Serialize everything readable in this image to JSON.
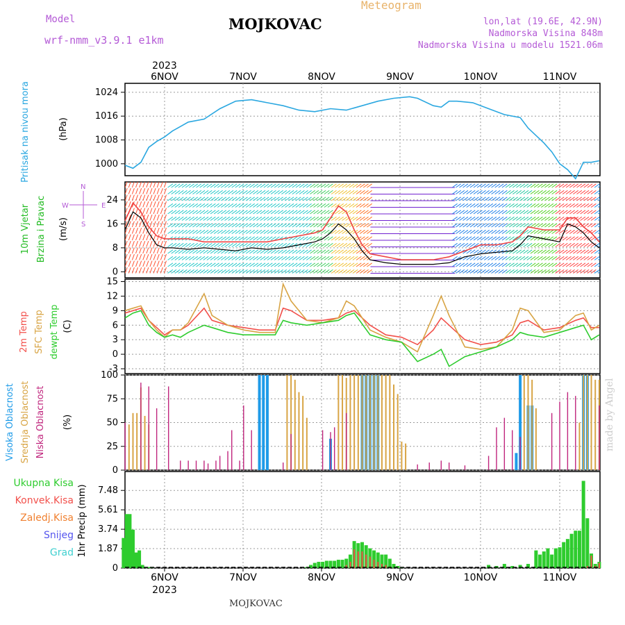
{
  "header": {
    "model_label": "Model",
    "model_name": "wrf-nmm_v3.9.1  e1km",
    "title": "MOJKOVAC",
    "product": "Meteogram",
    "lonlat": "lon,lat (19.6E, 42.9N)",
    "elevation": "Nadmorska Visina 848m",
    "model_elevation": "Nadmorska Visina u modelu 1521.06m",
    "year_top": "2023",
    "year_bottom": "2023",
    "footer_station": "MOJKOVAC",
    "credit": "made by Angel"
  },
  "days": [
    "6NOV",
    "7NOV",
    "8NOV",
    "9NOV",
    "10NOV",
    "11NOV"
  ],
  "colors": {
    "pressure": "#2aa7e0",
    "temp2m": "#f2504b",
    "sfc_temp": "#d8a444",
    "dewpoint": "#2ecc2e",
    "high_cloud": "#1e9be8",
    "mid_cloud": "#d8a444",
    "low_cloud": "#c0257d",
    "precip_total": "#2ecc2e",
    "precip_conv": "#f2504b",
    "precip_frz": "#f08030",
    "snow": "#5555ee",
    "graupel": "#40d0d0",
    "wind_gust": "#ee4444",
    "wind_speed": "#000000"
  },
  "chart_data": [
    {
      "type": "line",
      "panel": "pressure",
      "ylabel_left": "Pritisak na nivou mora",
      "ylabel": "(hPa)",
      "yticks": [
        "1000",
        "1008",
        "1016",
        "1024"
      ],
      "ylim": [
        996,
        1027
      ],
      "x_unit": "days from 6NOV 00UTC",
      "x": [
        -0.5,
        -0.4,
        -0.3,
        -0.2,
        -0.1,
        0,
        0.1,
        0.2,
        0.3,
        0.5,
        0.7,
        0.9,
        1.1,
        1.3,
        1.5,
        1.7,
        1.9,
        2.1,
        2.3,
        2.5,
        2.7,
        2.9,
        3.1,
        3.2,
        3.4,
        3.5,
        3.6,
        3.7,
        3.9,
        4.1,
        4.3,
        4.5,
        4.6,
        4.8,
        4.9,
        5.0,
        5.1,
        5.2,
        5.3,
        5.4,
        5.5
      ],
      "values": [
        999.5,
        998.5,
        1000.5,
        1005.5,
        1007.5,
        1009,
        1011,
        1012.5,
        1014,
        1015,
        1018.5,
        1021,
        1021.5,
        1020.5,
        1019.5,
        1018,
        1017.5,
        1018.5,
        1018,
        1019.5,
        1021,
        1022,
        1022.5,
        1022,
        1019.5,
        1019,
        1021,
        1021,
        1020.5,
        1018.5,
        1016.5,
        1015.5,
        1012,
        1007,
        1004,
        1000,
        998,
        995,
        1000.5,
        1000.5,
        1001
      ],
      "grid": true
    },
    {
      "type": "line",
      "panel": "wind",
      "ylabel_left": "10m Vjetar Brzina i Pravac",
      "ylabel": "(m/s)",
      "compass": "W E N S",
      "yticks": [
        "0",
        "8",
        "16",
        "24"
      ],
      "ylim": [
        -2,
        30
      ],
      "x_unit": "days from 6NOV 00UTC",
      "x": [
        -0.5,
        -0.4,
        -0.3,
        -0.2,
        -0.1,
        0,
        0.1,
        0.3,
        0.5,
        0.7,
        0.9,
        1.1,
        1.3,
        1.5,
        1.7,
        1.9,
        2.0,
        2.1,
        2.2,
        2.3,
        2.4,
        2.5,
        2.6,
        2.8,
        3.0,
        3.2,
        3.4,
        3.6,
        3.8,
        4.0,
        4.2,
        4.4,
        4.5,
        4.6,
        4.8,
        5.0,
        5.1,
        5.2,
        5.3,
        5.4,
        5.5
      ],
      "series": [
        {
          "name": "speed",
          "values": [
            14,
            20,
            18,
            13,
            9,
            8,
            8,
            7.5,
            8,
            7.5,
            7,
            8,
            7.5,
            8,
            9,
            10,
            11,
            13,
            16,
            14,
            11,
            7,
            4,
            3,
            2.5,
            2.5,
            2.5,
            3,
            5,
            6,
            6.5,
            7,
            9,
            12,
            11,
            10,
            16,
            15,
            13,
            10,
            8
          ]
        },
        {
          "name": "gust",
          "values": [
            17,
            23,
            20,
            15,
            12,
            11,
            11,
            11,
            10,
            10,
            10,
            10,
            10,
            11,
            12,
            13,
            14,
            18,
            22,
            20,
            14,
            9,
            6,
            5,
            4,
            4,
            4,
            5,
            7,
            9,
            9,
            10,
            12,
            15,
            14,
            14,
            18,
            18,
            15,
            13,
            10
          ]
        }
      ],
      "grid": true
    },
    {
      "type": "line",
      "panel": "temperature",
      "ylabel_left": [
        "2m Temp",
        "SFC Temp",
        "dewpt Temp"
      ],
      "ylabel": "(C)",
      "yticks": [
        "-3",
        "0",
        "3",
        "6",
        "9",
        "12",
        "15"
      ],
      "ylim": [
        -4,
        15.5
      ],
      "x_unit": "days from 6NOV 00UTC",
      "x": [
        -0.5,
        -0.4,
        -0.3,
        -0.2,
        -0.1,
        0,
        0.1,
        0.2,
        0.3,
        0.5,
        0.6,
        0.8,
        1.0,
        1.2,
        1.4,
        1.5,
        1.6,
        1.8,
        2.0,
        2.2,
        2.3,
        2.4,
        2.6,
        2.8,
        3.0,
        3.2,
        3.4,
        3.5,
        3.6,
        3.8,
        4.0,
        4.2,
        4.4,
        4.5,
        4.6,
        4.8,
        5.0,
        5.2,
        5.3,
        5.4,
        5.5
      ],
      "series": [
        {
          "name": "2m Temp",
          "values": [
            8.5,
            9,
            9.5,
            7,
            5.5,
            4,
            5,
            5,
            6,
            9.5,
            7,
            6,
            5.5,
            5,
            5,
            9.5,
            9,
            7,
            7,
            7.5,
            8.5,
            9,
            6,
            4,
            3.5,
            2,
            5,
            7.5,
            6,
            3,
            2,
            2.5,
            4,
            6.5,
            7,
            5,
            5.5,
            7,
            7.5,
            5.5,
            5.5
          ]
        },
        {
          "name": "SFC Temp",
          "values": [
            9,
            9.5,
            10,
            7,
            5,
            3.5,
            5,
            5,
            6.5,
            12.5,
            8,
            6,
            5,
            4.5,
            4.5,
            14.5,
            11,
            7,
            6.5,
            7.5,
            11,
            10,
            5,
            3.5,
            2.5,
            0.5,
            8,
            12,
            8,
            1.5,
            1,
            1.5,
            5,
            9.5,
            9,
            4.5,
            5,
            8,
            8.5,
            5,
            6
          ]
        },
        {
          "name": "dewpt Temp",
          "values": [
            7.5,
            8.5,
            9,
            6,
            4.5,
            3.5,
            4,
            3.5,
            4.5,
            6,
            5.5,
            4.5,
            4,
            4,
            4,
            7,
            6.5,
            6,
            6.5,
            7,
            8,
            8.5,
            4,
            3,
            2.5,
            -1.5,
            0,
            1,
            -2.5,
            -0.5,
            0.5,
            1.5,
            3,
            4.5,
            4,
            3.5,
            4.5,
            5.5,
            6,
            3,
            4
          ]
        }
      ],
      "grid": true
    },
    {
      "type": "bar",
      "panel": "cloud",
      "ylabel_left": [
        "Visoka Oblacnost",
        "Srednja Oblacnost",
        "Niska Oblacnost"
      ],
      "ylabel": "(%)",
      "yticks": [
        "0",
        "25",
        "50",
        "75",
        "100"
      ],
      "ylim": [
        0,
        100
      ],
      "x_unit": "days from 6NOV 00UTC",
      "series": [
        {
          "name": "Visoka Oblacnost",
          "x": [
            1.2,
            1.25,
            1.3,
            2.1,
            2.5,
            2.55,
            2.6,
            2.65,
            2.7,
            4.45,
            4.5,
            4.6,
            4.65,
            5.3,
            5.35
          ],
          "values": [
            100,
            100,
            100,
            33,
            100,
            100,
            100,
            100,
            100,
            18,
            100,
            68,
            68,
            100,
            100
          ]
        },
        {
          "name": "Srednja Oblacnost",
          "x": [
            -0.45,
            -0.4,
            -0.35,
            -0.3,
            -0.25,
            -0.2,
            1.55,
            1.6,
            1.65,
            1.7,
            1.75,
            1.8,
            2.2,
            2.25,
            2.3,
            2.35,
            2.4,
            2.45,
            2.5,
            2.55,
            2.6,
            2.65,
            2.7,
            2.75,
            2.8,
            2.85,
            2.9,
            2.95,
            3.0,
            3.05,
            4.55,
            4.6,
            4.65,
            4.7,
            5.25,
            5.3,
            5.35,
            5.4,
            5.45,
            5.5
          ],
          "values": [
            48,
            60,
            60,
            87,
            57,
            48,
            100,
            100,
            95,
            82,
            78,
            55,
            100,
            100,
            97,
            100,
            100,
            100,
            100,
            100,
            100,
            100,
            100,
            100,
            100,
            100,
            90,
            80,
            30,
            28,
            100,
            100,
            95,
            65,
            50,
            100,
            100,
            100,
            95,
            95
          ]
        },
        {
          "name": "Niska Oblacnost",
          "x": [
            -0.5,
            -0.3,
            -0.2,
            -0.1,
            0.05,
            0.2,
            0.3,
            0.4,
            0.5,
            0.55,
            0.65,
            0.7,
            0.8,
            0.85,
            0.95,
            1.0,
            1.1,
            1.5,
            1.6,
            2.0,
            2.1,
            2.15,
            2.3,
            3.2,
            3.35,
            3.5,
            3.6,
            3.8,
            4.1,
            4.2,
            4.3,
            4.4,
            4.5,
            4.9,
            5.0,
            5.1,
            5.2,
            5.5
          ],
          "values": [
            50,
            92,
            88,
            65,
            88,
            10,
            10,
            10,
            10,
            7,
            10,
            15,
            20,
            42,
            10,
            68,
            42,
            8,
            38,
            42,
            40,
            45,
            60,
            6,
            8,
            10,
            8,
            5,
            15,
            45,
            55,
            42,
            35,
            60,
            72,
            82,
            78,
            68
          ]
        }
      ],
      "grid": true
    },
    {
      "type": "bar",
      "panel": "precipitation",
      "ylabel_left": [
        "Ukupna  Kisa",
        "Konvek.Kisa",
        "Zaledj.Kisa",
        "Snijeg",
        "Grad"
      ],
      "ylabel": "1hr Precip (mm)",
      "yticks": [
        "0",
        "1.87",
        "3.74",
        "5.61",
        "7.48"
      ],
      "ylim": [
        0,
        9.3
      ],
      "x_unit": "days from 6NOV 00UTC",
      "x": [
        -0.52,
        -0.48,
        -0.44,
        -0.4,
        -0.36,
        -0.32,
        -0.28,
        -0.24,
        -0.2,
        -0.16,
        1.8,
        1.85,
        1.9,
        1.95,
        2.0,
        2.05,
        2.1,
        2.15,
        2.2,
        2.25,
        2.3,
        2.35,
        2.4,
        2.45,
        2.5,
        2.55,
        2.6,
        2.65,
        2.7,
        2.75,
        2.8,
        2.85,
        2.9,
        2.95,
        3.0,
        4.1,
        4.2,
        4.3,
        4.4,
        4.5,
        4.6,
        4.7,
        4.75,
        4.8,
        4.85,
        4.9,
        4.95,
        5.0,
        5.05,
        5.1,
        5.15,
        5.2,
        5.25,
        5.3,
        5.35,
        5.4,
        5.45,
        5.5
      ],
      "series": [
        {
          "name": "Ukupna  Kisa",
          "values": [
            2.9,
            5.2,
            5.2,
            3.7,
            1.5,
            1.7,
            0.3,
            0.1,
            0.1,
            0.1,
            0.1,
            0.3,
            0.5,
            0.6,
            0.6,
            0.7,
            0.7,
            0.7,
            0.8,
            0.8,
            0.9,
            1.3,
            2.6,
            2.4,
            2.5,
            2.2,
            1.9,
            1.7,
            1.5,
            1.3,
            1.3,
            0.9,
            0.4,
            0.2,
            0.1,
            0.3,
            0.2,
            0.4,
            0.2,
            0.3,
            0.4,
            1.7,
            1.3,
            1.6,
            1.9,
            1.3,
            1.9,
            2.0,
            2.5,
            2.8,
            3.3,
            3.6,
            3.6,
            8.4,
            4.8,
            1.4,
            0.4,
            0.6
          ]
        },
        {
          "name": "Konvek.Kisa",
          "values": [
            0,
            0,
            0,
            0,
            0,
            0,
            0,
            0,
            0,
            0,
            0,
            0,
            0,
            0,
            0,
            0,
            0,
            0,
            0,
            0,
            0.3,
            0.6,
            1.8,
            1.6,
            1.6,
            1.3,
            1.1,
            0.8,
            0.6,
            0.4,
            0.3,
            0.1,
            0,
            0,
            0,
            0,
            0,
            0,
            0,
            0,
            0,
            0,
            0,
            0,
            0,
            0,
            0,
            0,
            0,
            0,
            0,
            0,
            0,
            0,
            0.2,
            1.2,
            0.2,
            0.5
          ]
        }
      ],
      "grid": true
    }
  ]
}
